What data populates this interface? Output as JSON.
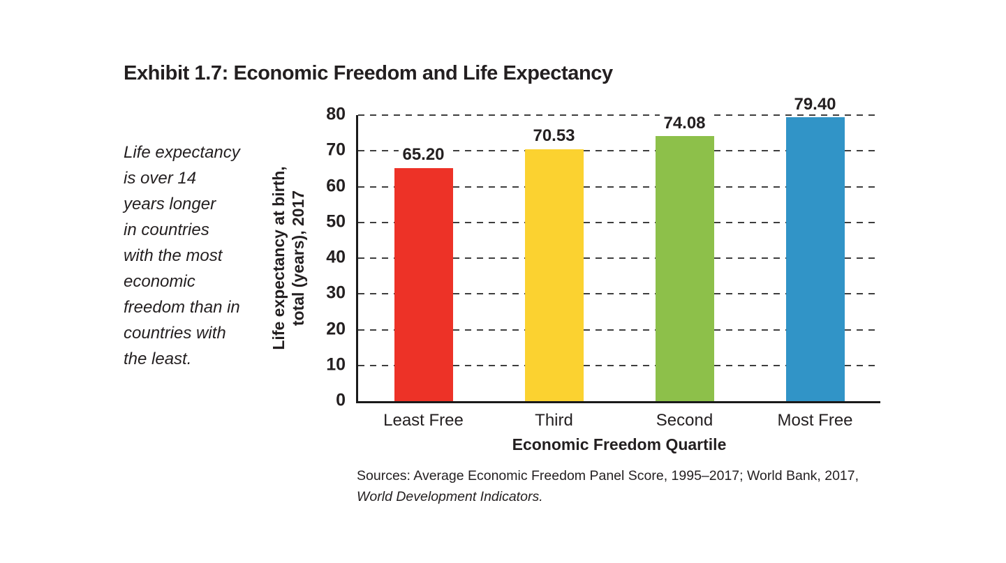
{
  "page": {
    "title": "Exhibit 1.7: Economic Freedom and Life Expectancy",
    "note": "Life expectancy\nis over 14\nyears longer\nin countries\nwith the most\neconomic\nfreedom than in\ncountries with\nthe least.",
    "sources_line1": "Sources: Average Economic Freedom Panel Score, 1995–2017; World Bank, 2017,",
    "sources_line2": "World Development Indicators."
  },
  "chart_data": {
    "type": "bar",
    "title": "Exhibit 1.7: Economic Freedom and Life Expectancy",
    "categories": [
      "Least Free",
      "Third",
      "Second",
      "Most Free"
    ],
    "values": [
      65.2,
      70.53,
      74.08,
      79.4
    ],
    "value_labels": [
      "65.20",
      "70.53",
      "74.08",
      "79.40"
    ],
    "bar_colors": [
      "#ed3227",
      "#fbd230",
      "#8dc04a",
      "#3194c7"
    ],
    "xlabel": "Economic Freedom Quartile",
    "ylabel": "Life expectancy at birth,\ntotal (years), 2017",
    "ylim": [
      0,
      80
    ],
    "yticks": [
      0,
      10,
      20,
      30,
      40,
      50,
      60,
      70,
      80
    ],
    "grid": "dashed horizontal gridlines at each y tick",
    "legend": "none",
    "annotation": "Life expectancy is over 14 years longer in countries with the most economic freedom than in countries with the least."
  },
  "colors": {
    "text": "#231f20",
    "axis": "#1a1a1a",
    "grid_dash": "#3e3e3e",
    "background": "#ffffff"
  }
}
